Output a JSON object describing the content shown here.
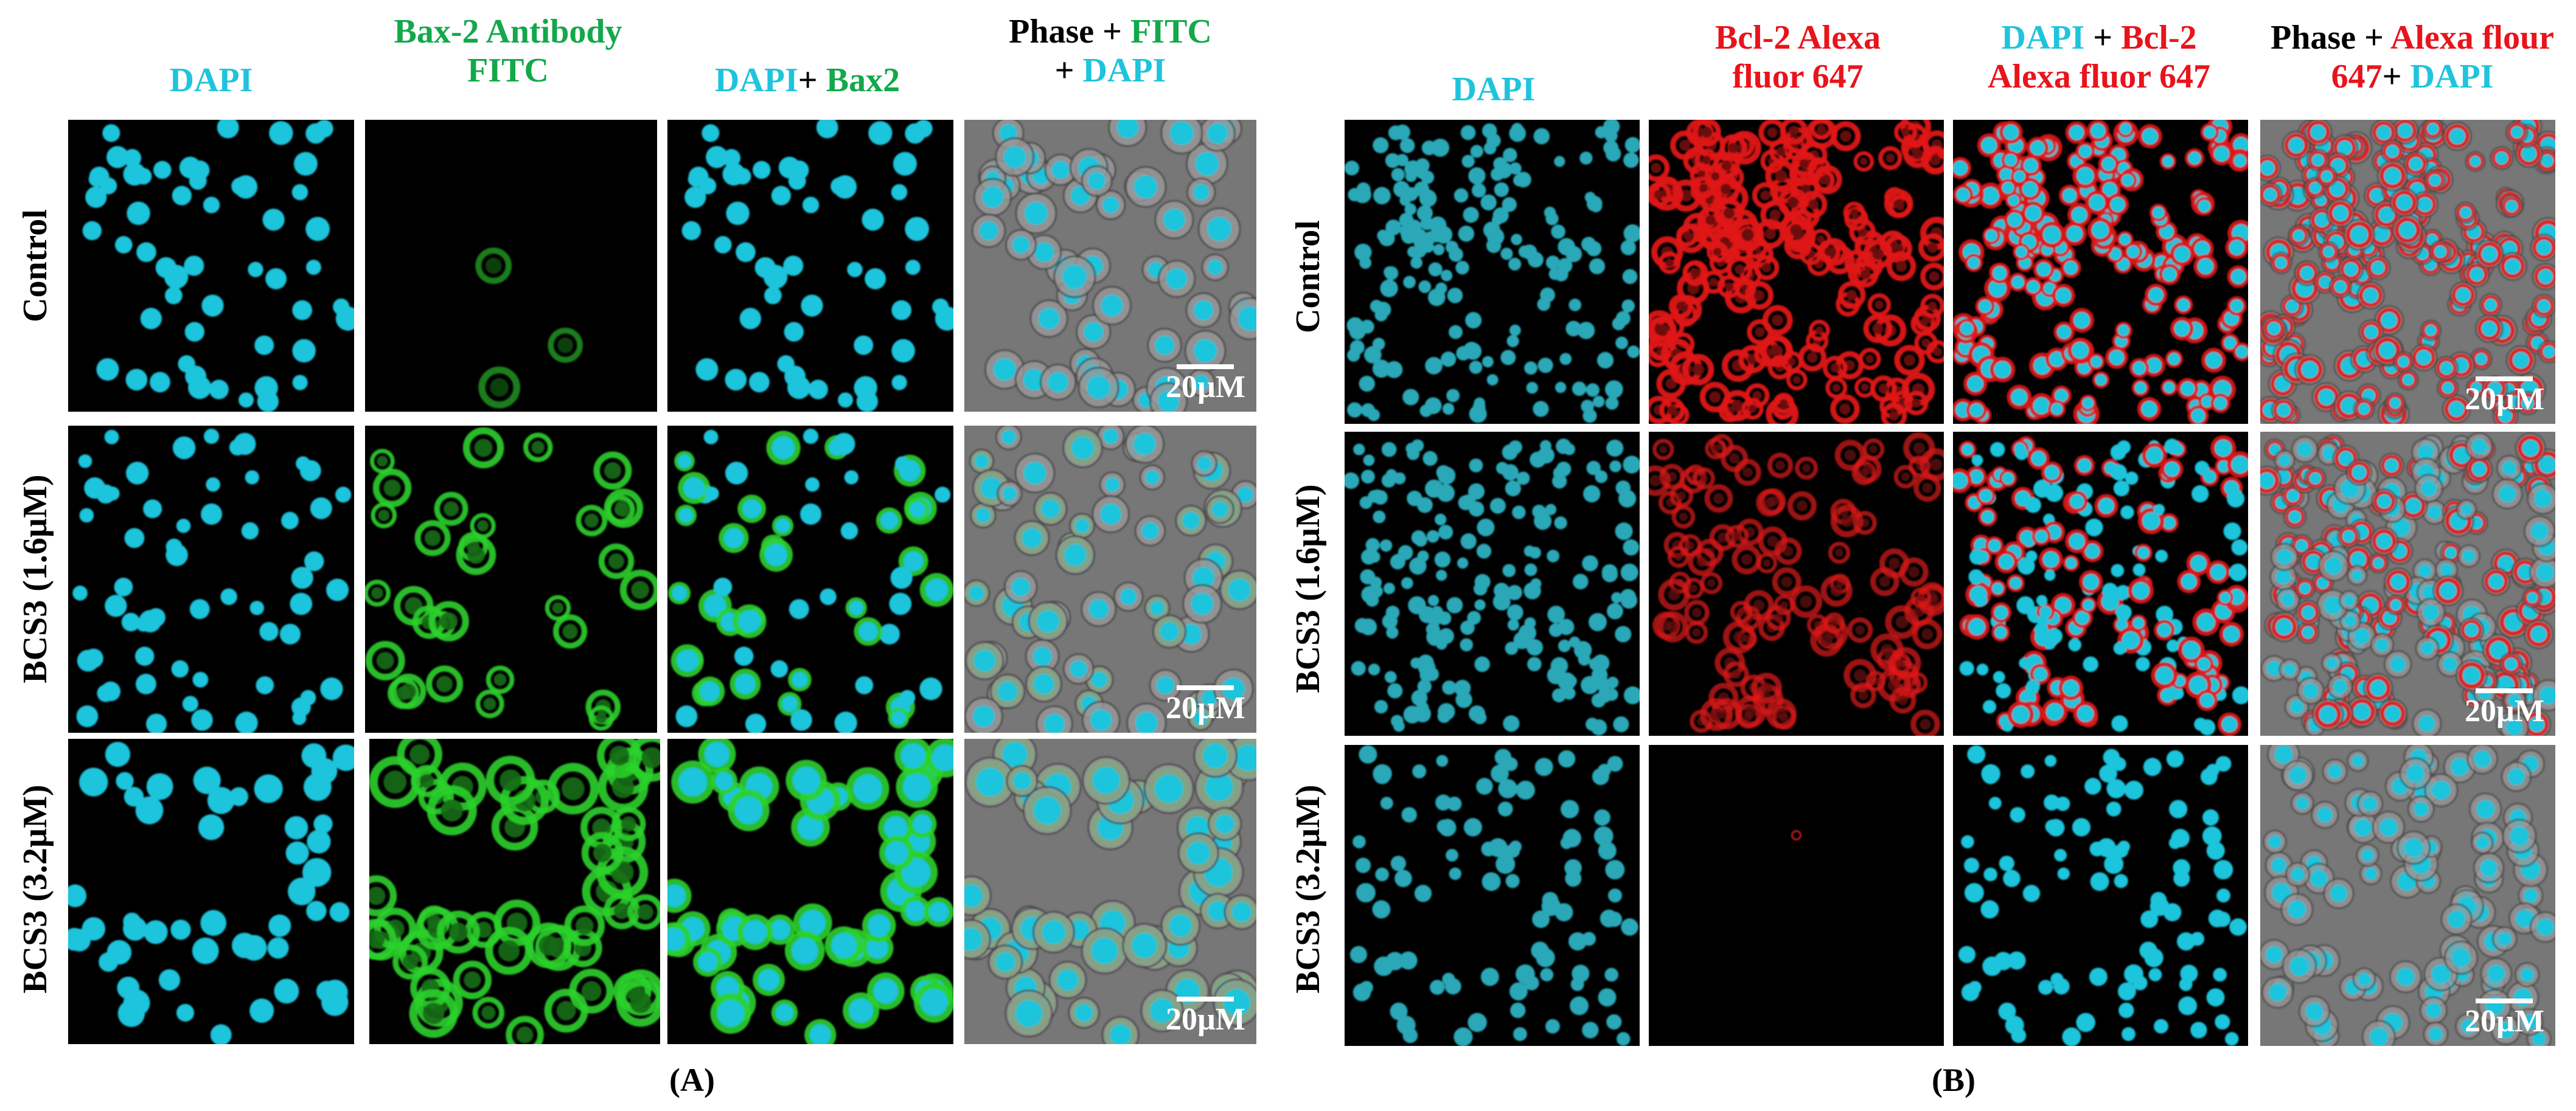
{
  "colors": {
    "dapi": "#1fc4dc",
    "green": "#13a84a",
    "red": "#e8141c",
    "black": "#000000"
  },
  "panelA": {
    "label": "(A)",
    "headers": [
      [
        {
          "t": "DAPI",
          "c": "dapi"
        }
      ],
      [
        {
          "t": "Bax-2 Antibody",
          "c": "green"
        },
        {
          "br": true
        },
        {
          "t": "FITC",
          "c": "green"
        }
      ],
      [
        {
          "t": "DAPI",
          "c": "dapi"
        },
        {
          "t": "+ ",
          "c": "black"
        },
        {
          "t": "Bax2",
          "c": "green"
        }
      ],
      [
        {
          "t": "Phase + ",
          "c": "black"
        },
        {
          "t": "FITC",
          "c": "green"
        },
        {
          "br": true
        },
        {
          "t": "+ ",
          "c": "black"
        },
        {
          "t": "DAPI",
          "c": "dapi"
        }
      ]
    ],
    "rows": [
      "Control",
      "BCS3 (1.6µM)",
      "BCS3 (3.2µM)"
    ],
    "scale": "20µM"
  },
  "panelB": {
    "label": "(B)",
    "headers": [
      [
        {
          "t": "DAPI",
          "c": "dapi"
        }
      ],
      [
        {
          "t": "Bcl-2 Alexa",
          "c": "red"
        },
        {
          "br": true
        },
        {
          "t": "fluor 647",
          "c": "red"
        }
      ],
      [
        {
          "t": "DAPI",
          "c": "dapi"
        },
        {
          "t": " + ",
          "c": "black"
        },
        {
          "t": "Bcl-2",
          "c": "red"
        },
        {
          "br": true
        },
        {
          "t": "Alexa fluor 647",
          "c": "red"
        }
      ],
      [
        {
          "t": "Phase + ",
          "c": "black"
        },
        {
          "t": "Alexa flour",
          "c": "red"
        },
        {
          "br": true
        },
        {
          "t": "647",
          "c": "red"
        },
        {
          "t": "+ ",
          "c": "black"
        },
        {
          "t": "DAPI",
          "c": "dapi"
        }
      ]
    ],
    "rows": [
      "Control",
      "BCS3 (1.6µM)",
      "BCS3 (3.2µM)"
    ],
    "scale": "20µM"
  }
}
